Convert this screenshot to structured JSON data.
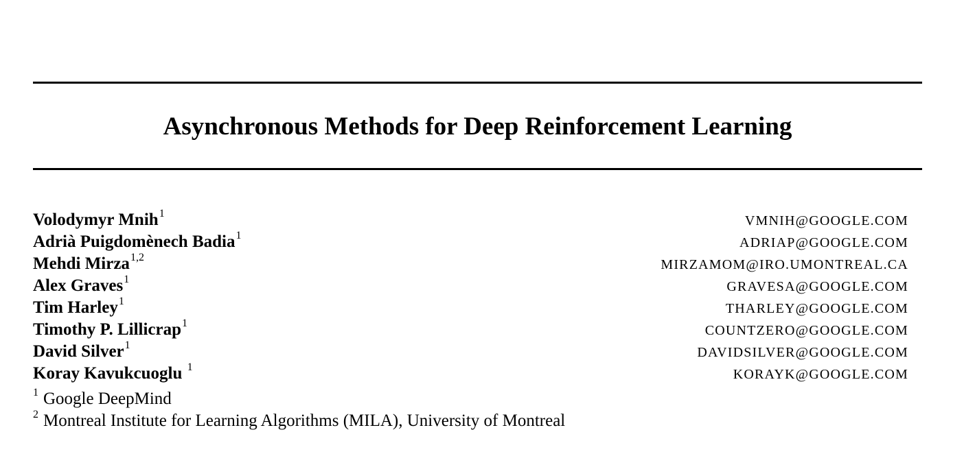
{
  "paper": {
    "title": "Asynchronous Methods for Deep Reinforcement Learning"
  },
  "authors": [
    {
      "name": "Volodymyr Mnih",
      "sup": "1",
      "email": "VMNIH@GOOGLE.COM"
    },
    {
      "name": "Adrià Puigdomènech Badia",
      "sup": "1",
      "email": "ADRIAP@GOOGLE.COM"
    },
    {
      "name": "Mehdi Mirza",
      "sup": "1,2",
      "email": "MIRZAMOM@IRO.UMONTREAL.CA"
    },
    {
      "name": "Alex Graves",
      "sup": "1",
      "email": "GRAVESA@GOOGLE.COM"
    },
    {
      "name": "Tim Harley",
      "sup": "1",
      "email": "THARLEY@GOOGLE.COM"
    },
    {
      "name": "Timothy P. Lillicrap",
      "sup": "1",
      "email": "COUNTZERO@GOOGLE.COM"
    },
    {
      "name": "David Silver",
      "sup": "1",
      "email": "DAVIDSILVER@GOOGLE.COM"
    },
    {
      "name": "Koray Kavukcuoglu ",
      "sup": "1",
      "email": "KORAYK@GOOGLE.COM"
    }
  ],
  "affiliations": [
    {
      "mark": "1",
      "text": "Google DeepMind"
    },
    {
      "mark": "2",
      "text": "Montreal Institute for Learning Algorithms (MILA), University of Montreal"
    }
  ]
}
